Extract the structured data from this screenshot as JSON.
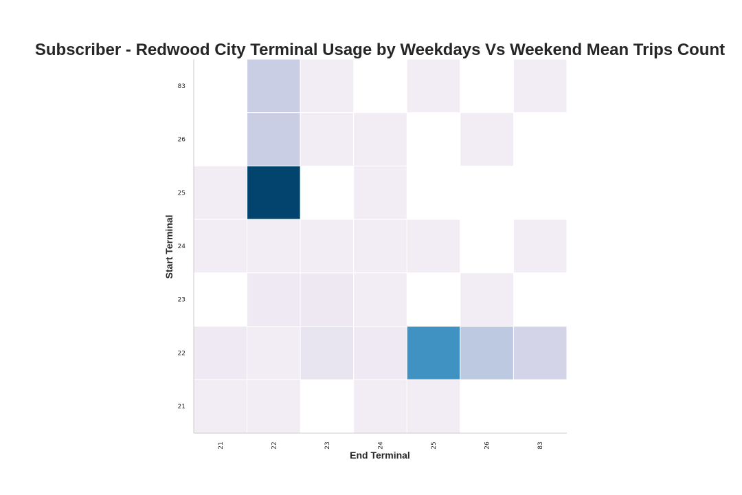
{
  "chart_data": {
    "type": "heatmap",
    "title": "Subscriber - Redwood City Terminal Usage by Weekdays Vs Weekend Mean Trips Count",
    "xlabel": "End Terminal",
    "ylabel": "Start Terminal",
    "x_categories": [
      "21",
      "22",
      "23",
      "24",
      "25",
      "26",
      "83"
    ],
    "y_categories": [
      "83",
      "26",
      "25",
      "24",
      "23",
      "22",
      "21"
    ],
    "colormap": "PuBu",
    "value_range": [
      0,
      1
    ],
    "values": [
      [
        null,
        0.28,
        0.05,
        null,
        0.05,
        null,
        0.05
      ],
      [
        null,
        0.28,
        0.05,
        0.05,
        null,
        0.05,
        null
      ],
      [
        0.05,
        1.0,
        null,
        0.05,
        null,
        null,
        null
      ],
      [
        0.05,
        0.05,
        0.05,
        0.05,
        0.05,
        null,
        0.05
      ],
      [
        null,
        0.1,
        0.11,
        0.05,
        null,
        0.05,
        null
      ],
      [
        0.1,
        0.05,
        0.14,
        0.1,
        0.68,
        0.33,
        0.23
      ],
      [
        0.05,
        0.05,
        null,
        0.05,
        0.05,
        null,
        null
      ]
    ]
  }
}
